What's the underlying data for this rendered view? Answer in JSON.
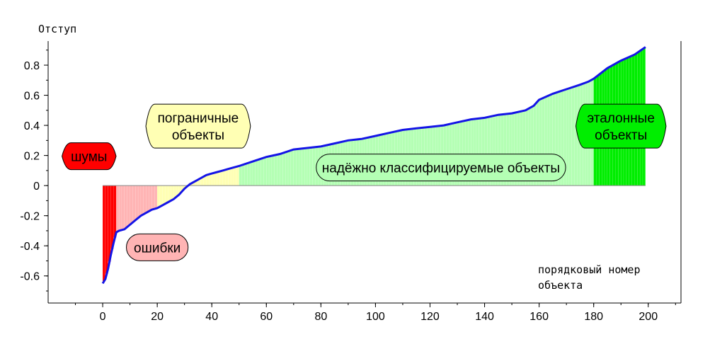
{
  "chart_data": {
    "type": "area",
    "ylabel": "Отступ",
    "xlabel_lines": [
      "порядковый номер",
      "объекта"
    ],
    "xlim": [
      -20,
      212
    ],
    "ylim": [
      -0.78,
      0.96
    ],
    "x_ticks": [
      0,
      20,
      40,
      60,
      80,
      100,
      120,
      140,
      160,
      180,
      200
    ],
    "y_ticks": [
      -0.6,
      -0.4,
      -0.2,
      0,
      0.2,
      0.4,
      0.6,
      0.8
    ],
    "y_tick_labels": [
      "-0.6",
      "-0.4",
      "-0.2",
      "0",
      "0.2",
      "0.4",
      "0.6",
      "0.8"
    ],
    "line_color": "#1414e6",
    "series": {
      "x": [
        0,
        1,
        2,
        3,
        4,
        5,
        6,
        8,
        10,
        12,
        14,
        16,
        18,
        20,
        22,
        24,
        26,
        28,
        30,
        32,
        34,
        36,
        38,
        40,
        42,
        44,
        46,
        48,
        50,
        55,
        60,
        65,
        70,
        75,
        80,
        85,
        90,
        95,
        100,
        105,
        110,
        115,
        120,
        125,
        130,
        135,
        140,
        145,
        150,
        155,
        158,
        160,
        165,
        170,
        175,
        178,
        180,
        185,
        190,
        195,
        199
      ],
      "y": [
        -0.65,
        -0.62,
        -0.55,
        -0.46,
        -0.38,
        -0.31,
        -0.3,
        -0.29,
        -0.26,
        -0.23,
        -0.2,
        -0.18,
        -0.16,
        -0.15,
        -0.13,
        -0.11,
        -0.09,
        -0.06,
        -0.02,
        0.01,
        0.03,
        0.05,
        0.07,
        0.08,
        0.09,
        0.1,
        0.11,
        0.12,
        0.13,
        0.16,
        0.19,
        0.21,
        0.24,
        0.25,
        0.26,
        0.28,
        0.3,
        0.31,
        0.33,
        0.35,
        0.37,
        0.38,
        0.39,
        0.4,
        0.42,
        0.44,
        0.45,
        0.47,
        0.48,
        0.5,
        0.53,
        0.57,
        0.61,
        0.64,
        0.67,
        0.69,
        0.71,
        0.78,
        0.83,
        0.87,
        0.92
      ]
    },
    "regions": [
      {
        "name": "шумы",
        "x_start": 0,
        "x_end": 5,
        "fill_color": "#ff0000",
        "label_bg": "#ff0000",
        "label_x": -5,
        "label_y": 0.195,
        "shape": "hex"
      },
      {
        "name": "ошибки",
        "x_start": 5,
        "x_end": 20,
        "fill_color": "#ffb4b4",
        "label_bg": "#ffb4b4",
        "label_x": 20,
        "label_y": -0.41,
        "shape": "round"
      },
      {
        "name": "пограничные объекты",
        "x_start": 20,
        "x_end": 50,
        "fill_color": "#ffffb4",
        "label_bg": "#ffffb4",
        "label_x": 35,
        "label_y": 0.395,
        "shape": "hex"
      },
      {
        "name": "надёжно классифицируемые объекты",
        "x_start": 50,
        "x_end": 180,
        "fill_color": "#b4ffb4",
        "label_bg": "#b4ffb4",
        "label_x": 124,
        "label_y": 0.12,
        "shape": "round"
      },
      {
        "name": "эталонные объекты",
        "x_start": 180,
        "x_end": 199,
        "fill_color": "#00ee00",
        "label_bg": "#00ee00",
        "label_x": 190,
        "label_y": 0.395,
        "shape": "hex"
      }
    ],
    "region_labels": {
      "noise": "шумы",
      "errors": "ошибки",
      "boundary": [
        "пограничные",
        "объекты"
      ],
      "reliable": "надёжно классифицируемые объекты",
      "standard": [
        "эталонные",
        "объекты"
      ]
    }
  }
}
